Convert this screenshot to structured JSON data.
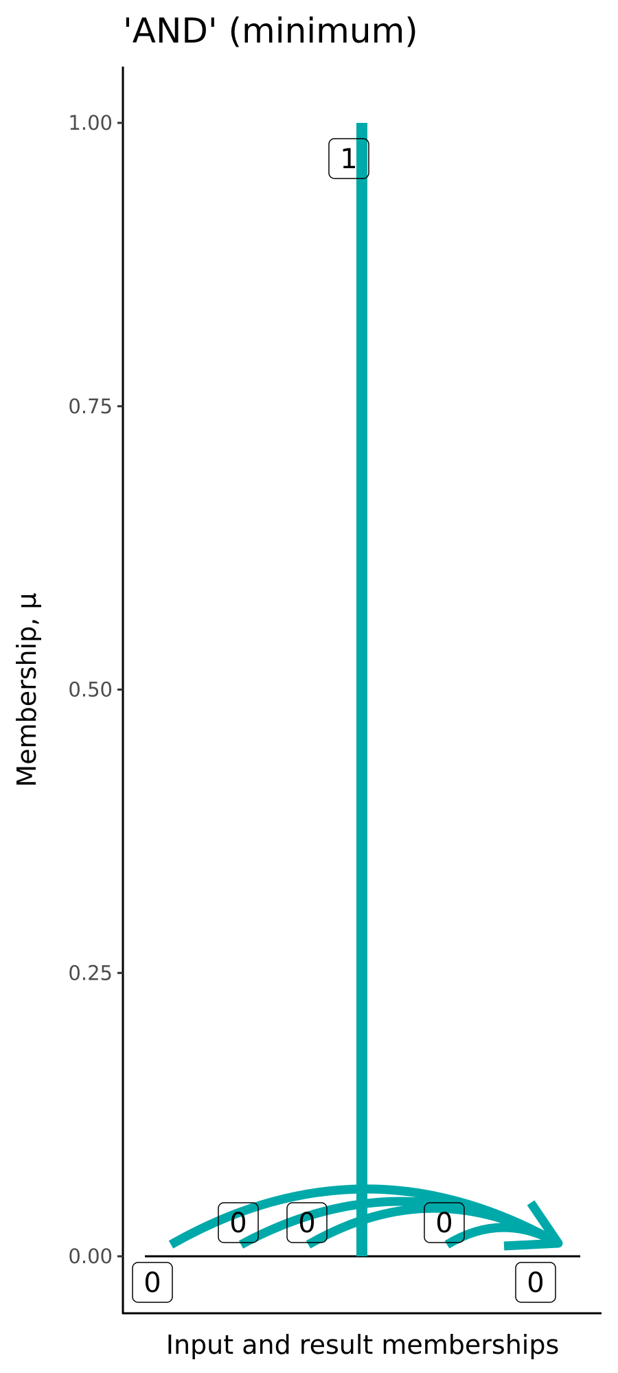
{
  "chart_data": {
    "type": "line",
    "title": "'AND' (minimum)",
    "xlabel": "Input and result memberships",
    "ylabel": "Membership, μ",
    "ylim": [
      -0.05,
      1.05
    ],
    "yticks": [
      "0.00",
      "0.25",
      "0.50",
      "0.75",
      "1.00"
    ],
    "ytick_values": [
      0,
      0.25,
      0.5,
      0.75,
      1
    ],
    "grid": false,
    "color": "#00A9A9",
    "vertical_segment": {
      "from": 0,
      "to": 1,
      "label": "1"
    },
    "point_labels": [
      {
        "value": 0,
        "label": "0"
      },
      {
        "value": 0,
        "label": "0"
      },
      {
        "value": 0,
        "label": "0"
      },
      {
        "value": 0,
        "label": "0"
      },
      {
        "value": 0,
        "label": "0",
        "role": "result"
      }
    ],
    "arrows": [
      {
        "from_value": 0,
        "to_value": 0
      },
      {
        "from_value": 0,
        "to_value": 0
      },
      {
        "from_value": 0,
        "to_value": 0
      },
      {
        "from_value": 0,
        "to_value": 0
      }
    ]
  }
}
